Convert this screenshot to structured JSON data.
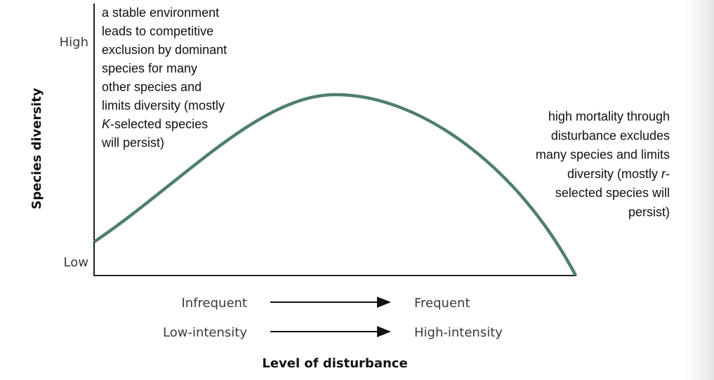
{
  "axes": {
    "y_title": "Species diversity",
    "y_high": "High",
    "y_low": "Low",
    "x_title": "Level of disturbance",
    "x_rows": [
      {
        "from": "Infrequent",
        "to": "Frequent"
      },
      {
        "from": "Low-intensity",
        "to": "High-intensity"
      }
    ]
  },
  "annotations": {
    "left": [
      [
        "a stable environment"
      ],
      [
        "leads to competitive"
      ],
      [
        "exclusion by dominant"
      ],
      [
        "species for many"
      ],
      [
        "other species and"
      ],
      [
        "limits diversity (mostly"
      ],
      [
        {
          "italic": "K"
        },
        "-selected species"
      ],
      [
        "will persist)"
      ]
    ],
    "right": [
      [
        "high mortality through"
      ],
      [
        "disturbance excludes"
      ],
      [
        "many species and limits"
      ],
      [
        "diversity (mostly ",
        {
          "italic": "r"
        },
        "-"
      ],
      [
        "selected species will"
      ],
      [
        "persist)"
      ]
    ]
  }
}
